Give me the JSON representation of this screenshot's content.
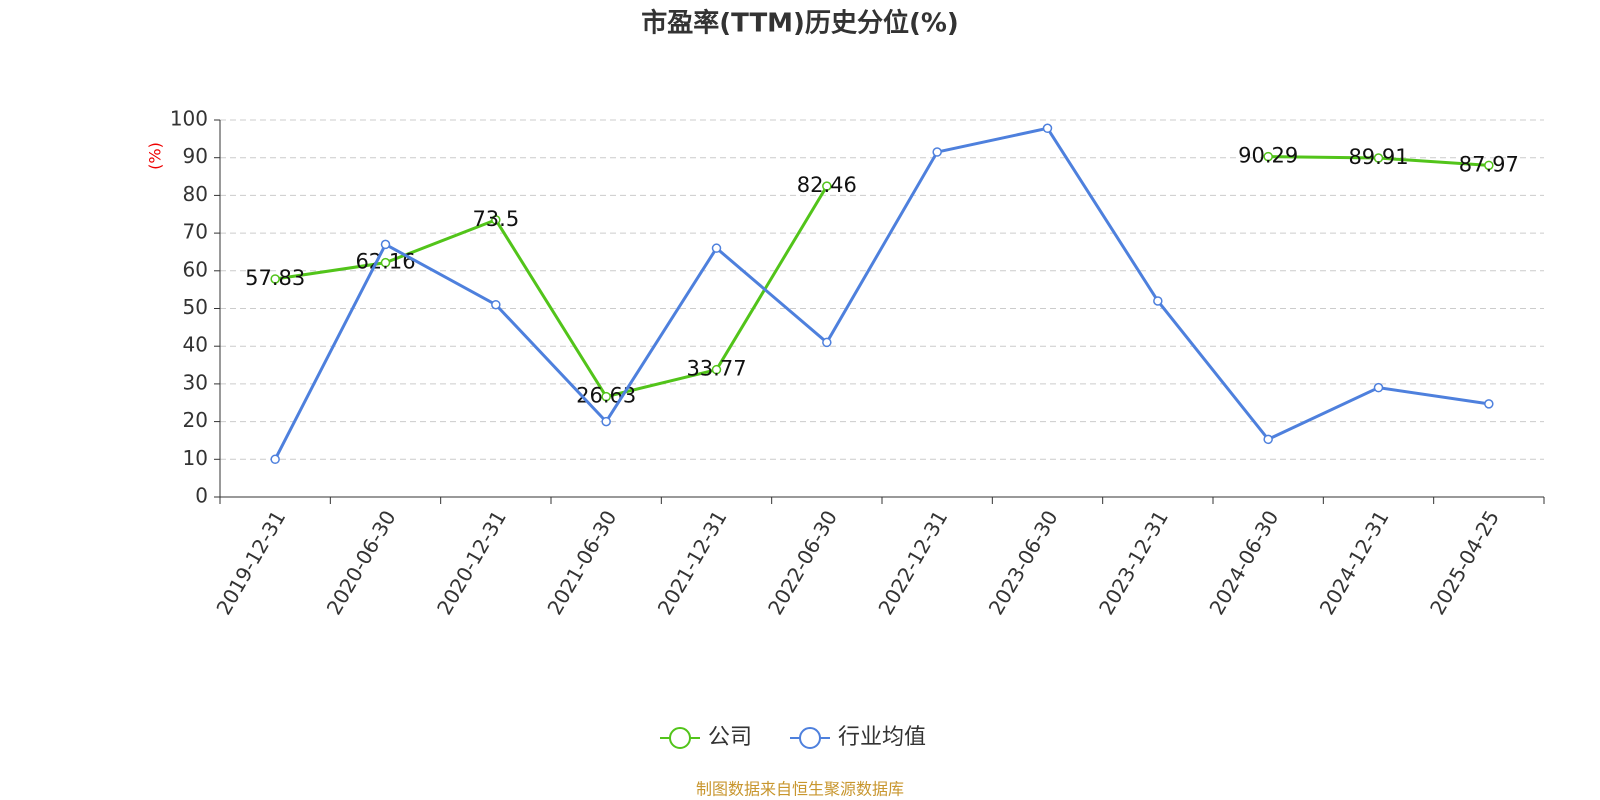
{
  "chart_data": {
    "type": "line",
    "title": "市盈率(TTM)历史分位(%)",
    "y_label": "(%)",
    "categories": [
      "2019-12-31",
      "2020-06-30",
      "2020-12-31",
      "2021-06-30",
      "2021-12-31",
      "2022-06-30",
      "2022-12-31",
      "2023-06-30",
      "2023-12-31",
      "2024-06-30",
      "2024-12-31",
      "2025-04-25"
    ],
    "series": [
      {
        "name": "公司",
        "color": "#52c41a",
        "values": [
          57.83,
          62.16,
          73.5,
          26.63,
          33.77,
          82.46,
          null,
          null,
          null,
          90.29,
          89.91,
          87.97
        ]
      },
      {
        "name": "行业均值",
        "color": "#4e80dd",
        "values": [
          10,
          67,
          51,
          20,
          66,
          41,
          91.5,
          97.8,
          52,
          15.3,
          29,
          24.7
        ]
      }
    ],
    "ylim": [
      0,
      100
    ],
    "yticks": [
      0,
      10,
      20,
      30,
      40,
      50,
      60,
      70,
      80,
      90,
      100
    ],
    "grid": true,
    "legend": "bottom",
    "source": "制图数据来自恒生聚源数据库"
  }
}
